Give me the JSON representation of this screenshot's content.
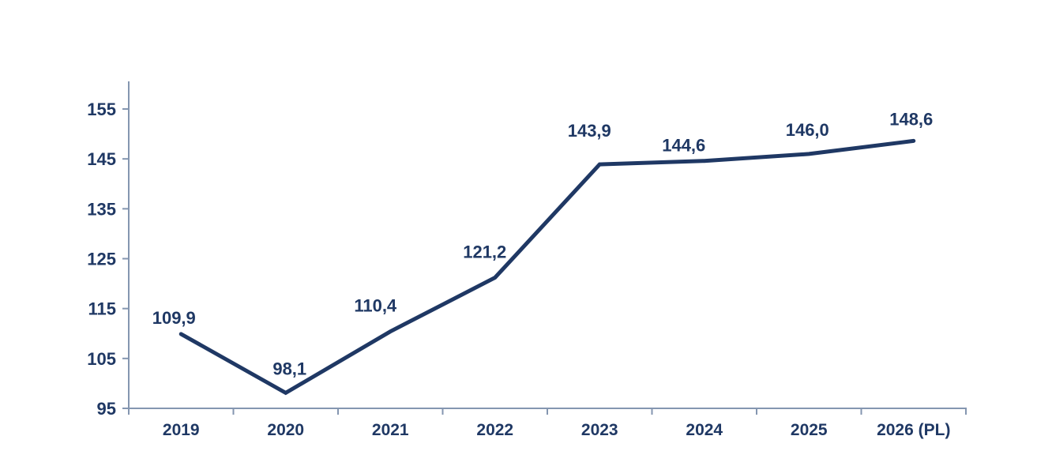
{
  "chart_data": {
    "type": "line",
    "categories": [
      "2019",
      "2020",
      "2021",
      "2022",
      "2023",
      "2024",
      "2025",
      "2026 (PL)"
    ],
    "values": [
      109.9,
      98.1,
      110.4,
      121.2,
      143.9,
      144.6,
      146.0,
      148.6
    ],
    "value_labels": [
      "109,9",
      "98,1",
      "110,4",
      "121,2",
      "143,9",
      "144,6",
      "146,0",
      "148,6"
    ],
    "title": "",
    "xlabel": "",
    "ylabel": "",
    "ylim": [
      95,
      155
    ],
    "y_tick_step": 10,
    "y_tick_labels": [
      "95",
      "105",
      "115",
      "125",
      "135",
      "145",
      "155"
    ],
    "grid": false,
    "legend": "none",
    "colors": {
      "line": "#1F3864",
      "data_labels": "#1F3864",
      "tick_labels": "#1F3864",
      "axis": "#8496B0"
    },
    "label_dx": [
      -9,
      5,
      -19,
      -13,
      -13,
      -26,
      -2,
      -3
    ],
    "label_dy": [
      13,
      23,
      25,
      25,
      35,
      12,
      23,
      20
    ]
  }
}
